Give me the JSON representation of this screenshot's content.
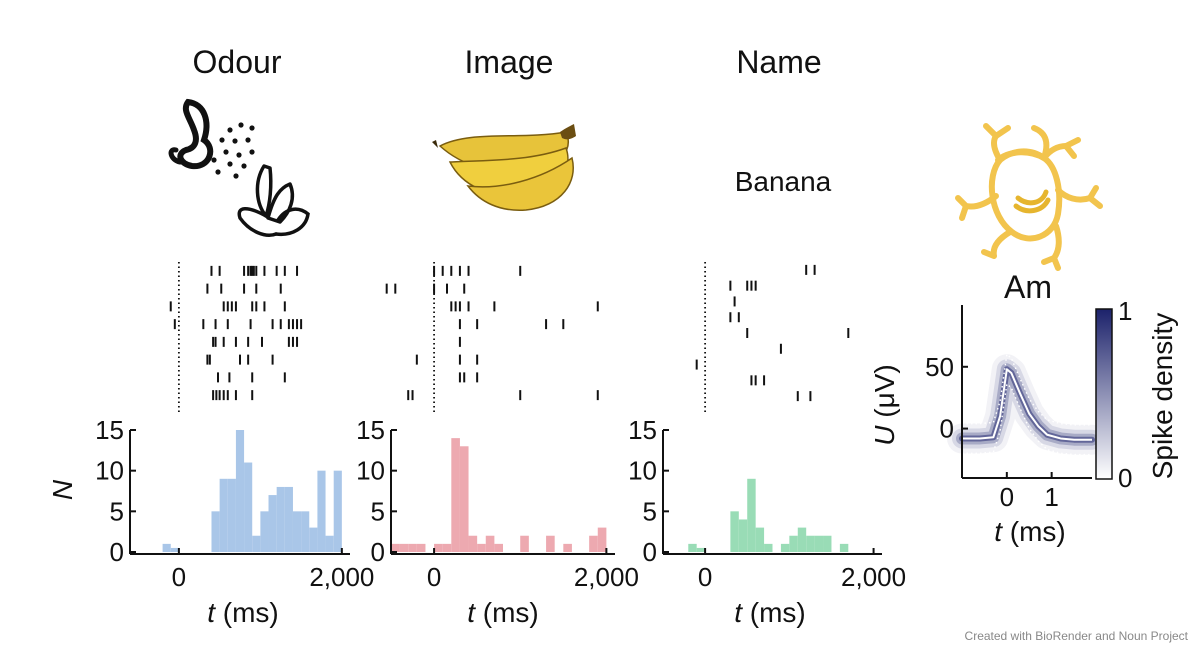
{
  "figure": {
    "credit": "Created with BioRender and Noun Project"
  },
  "chart_data": [
    {
      "type": "bar",
      "name": "odour-histogram",
      "title": "Odour",
      "stimulus_icon": "nose-sniffing-banana-icon",
      "xlabel_var": "t",
      "xlabel_unit": " (ms)",
      "ylabel": "N",
      "xlim": [
        -600,
        2100
      ],
      "ylim": [
        0,
        15
      ],
      "xticks": [
        {
          "v": 0,
          "label": "0"
        },
        {
          "v": 2000,
          "label": "2,000"
        }
      ],
      "yticks": [
        {
          "v": 0,
          "label": "0"
        },
        {
          "v": 5,
          "label": "5"
        },
        {
          "v": 10,
          "label": "10"
        },
        {
          "v": 15,
          "label": "15"
        }
      ],
      "bin_width": 100,
      "bin_starts": [
        -200,
        -100,
        400,
        500,
        600,
        700,
        800,
        900,
        1000,
        1100,
        1200,
        1300,
        1400,
        1500,
        1600,
        1700,
        1800,
        1900
      ],
      "values": [
        1,
        0.5,
        5,
        9,
        9,
        15,
        11,
        2,
        5,
        7,
        8,
        8,
        5,
        5,
        3,
        10,
        2,
        10
      ],
      "color": "#a9c6e8",
      "raster": {
        "stimulus_onset": 0,
        "trials": [
          [
            400,
            500,
            800,
            850,
            880,
            900,
            920,
            950,
            1050,
            1200,
            1300,
            1450
          ],
          [
            350,
            520,
            800,
            950,
            1250
          ],
          [
            -100,
            550,
            600,
            650,
            700,
            900,
            950,
            1050,
            1300
          ],
          [
            -50,
            300,
            450,
            600,
            880,
            1150,
            1250,
            1350,
            1400,
            1450,
            1500
          ],
          [
            420,
            450,
            550,
            700,
            850,
            1020,
            1350,
            1400,
            1450
          ],
          [
            350,
            380,
            750,
            850,
            1150
          ],
          [
            480,
            620,
            900,
            1300
          ],
          [
            420,
            460,
            500,
            550,
            600,
            700,
            900
          ]
        ]
      }
    },
    {
      "type": "bar",
      "name": "image-histogram",
      "title": "Image",
      "stimulus_icon": "banana-bunch-icon",
      "xlabel_var": "t",
      "xlabel_unit": " (ms)",
      "ylabel": "",
      "xlim": [
        -500,
        2100
      ],
      "ylim": [
        0,
        15
      ],
      "xticks": [
        {
          "v": 0,
          "label": "0"
        },
        {
          "v": 2000,
          "label": "2,000"
        }
      ],
      "yticks": [
        {
          "v": 0,
          "label": "0"
        },
        {
          "v": 5,
          "label": "5"
        },
        {
          "v": 10,
          "label": "10"
        },
        {
          "v": 15,
          "label": "15"
        }
      ],
      "bin_width": 100,
      "bin_starts": [
        -500,
        -400,
        -300,
        -200,
        0,
        100,
        200,
        300,
        400,
        500,
        600,
        700,
        1000,
        1300,
        1500,
        1800,
        1900
      ],
      "values": [
        1,
        1,
        1,
        1,
        1,
        1,
        14,
        13,
        2,
        1,
        2,
        1,
        2,
        2,
        1,
        2,
        3
      ],
      "color": "#eda9b0",
      "raster": {
        "stimulus_onset": 0,
        "trials": [
          [
            0,
            100,
            200,
            300,
            400,
            1000
          ],
          [
            -550,
            -450,
            0,
            150,
            350
          ],
          [
            200,
            250,
            300,
            400,
            700,
            1900
          ],
          [
            300,
            500,
            1300,
            1500
          ],
          [
            300
          ],
          [
            -200,
            300,
            500
          ],
          [
            300,
            350,
            500
          ],
          [
            -300,
            -250,
            1000,
            1900
          ]
        ]
      }
    },
    {
      "type": "bar",
      "name": "name-histogram",
      "title": "Name",
      "stimulus_word": "Banana",
      "xlabel_var": "t",
      "xlabel_unit": " (ms)",
      "ylabel": "",
      "xlim": [
        -500,
        2100
      ],
      "ylim": [
        0,
        15
      ],
      "xticks": [
        {
          "v": 0,
          "label": "0"
        },
        {
          "v": 2000,
          "label": "2,000"
        }
      ],
      "yticks": [
        {
          "v": 0,
          "label": "0"
        },
        {
          "v": 5,
          "label": "5"
        },
        {
          "v": 10,
          "label": "10"
        },
        {
          "v": 15,
          "label": "15"
        }
      ],
      "bin_width": 100,
      "bin_starts": [
        -200,
        -100,
        300,
        400,
        500,
        600,
        700,
        900,
        1000,
        1100,
        1200,
        1300,
        1400,
        1600
      ],
      "values": [
        1,
        0.5,
        5,
        4,
        9,
        3,
        1,
        1,
        2,
        3,
        2,
        2,
        2,
        1
      ],
      "color": "#99dcb6",
      "raster": {
        "stimulus_onset": 0,
        "trials": [
          [
            1200,
            1300
          ],
          [
            300,
            500,
            550,
            600
          ],
          [
            350
          ],
          [
            300,
            400
          ],
          [
            500,
            1700
          ],
          [
            900
          ],
          [
            -100
          ],
          [
            550,
            600,
            700
          ],
          [
            1100,
            1250
          ]
        ]
      }
    },
    {
      "type": "heatmap",
      "name": "waveform-density",
      "title": "Am",
      "neuron_icon": "neuron-with-banana-icon",
      "xlabel_var": "t",
      "xlabel_unit": " (ms)",
      "ylabel_var": "U",
      "ylabel_unit": " (μV)",
      "xlim": [
        -1.0,
        1.9
      ],
      "ylim": [
        -40,
        100
      ],
      "xticks": [
        {
          "v": 0,
          "label": "0"
        },
        {
          "v": 1,
          "label": "1"
        }
      ],
      "yticks": [
        {
          "v": 0,
          "label": "0"
        },
        {
          "v": 50,
          "label": "50"
        }
      ],
      "mean_waveform": {
        "t": [
          -1.0,
          -0.6,
          -0.3,
          -0.15,
          0.0,
          0.1,
          0.3,
          0.5,
          0.7,
          0.9,
          1.2,
          1.5,
          1.9
        ],
        "u": [
          -8,
          -8,
          -7,
          10,
          48,
          45,
          28,
          12,
          2,
          -5,
          -8,
          -9,
          -9
        ]
      },
      "colorbar": {
        "label": "Spike density",
        "min_label": "0",
        "max_label": "1",
        "low_color": "#ffffff",
        "high_color": "#1c226b"
      }
    }
  ]
}
